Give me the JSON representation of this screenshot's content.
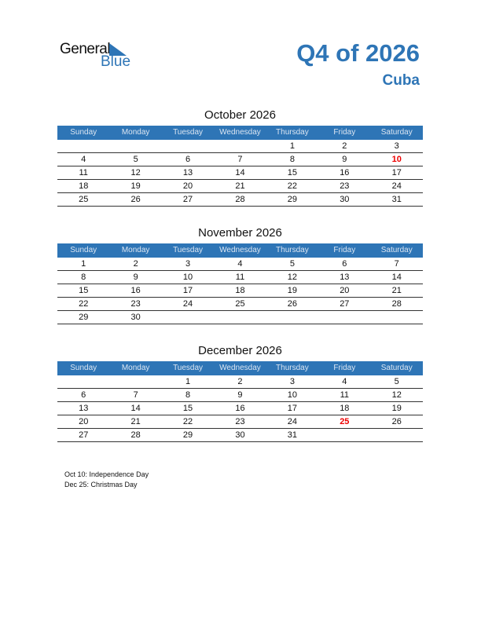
{
  "logo": {
    "general": "General",
    "blue": "Blue"
  },
  "title": "Q4 of 2026",
  "country": "Cuba",
  "weekdays": [
    "Sunday",
    "Monday",
    "Tuesday",
    "Wednesday",
    "Thursday",
    "Friday",
    "Saturday"
  ],
  "colors": {
    "accent": "#2e75b6",
    "holiday": "#e00000"
  },
  "months": [
    {
      "title": "October 2026",
      "weeks": [
        [
          "",
          "",
          "",
          "",
          "1",
          "2",
          "3"
        ],
        [
          "4",
          "5",
          "6",
          "7",
          "8",
          "9",
          "10"
        ],
        [
          "11",
          "12",
          "13",
          "14",
          "15",
          "16",
          "17"
        ],
        [
          "18",
          "19",
          "20",
          "21",
          "22",
          "23",
          "24"
        ],
        [
          "25",
          "26",
          "27",
          "28",
          "29",
          "30",
          "31"
        ]
      ],
      "holidays": [
        "10"
      ]
    },
    {
      "title": "November 2026",
      "weeks": [
        [
          "1",
          "2",
          "3",
          "4",
          "5",
          "6",
          "7"
        ],
        [
          "8",
          "9",
          "10",
          "11",
          "12",
          "13",
          "14"
        ],
        [
          "15",
          "16",
          "17",
          "18",
          "19",
          "20",
          "21"
        ],
        [
          "22",
          "23",
          "24",
          "25",
          "26",
          "27",
          "28"
        ],
        [
          "29",
          "30",
          "",
          "",
          "",
          "",
          ""
        ]
      ],
      "holidays": []
    },
    {
      "title": "December 2026",
      "weeks": [
        [
          "",
          "",
          "1",
          "2",
          "3",
          "4",
          "5"
        ],
        [
          "6",
          "7",
          "8",
          "9",
          "10",
          "11",
          "12"
        ],
        [
          "13",
          "14",
          "15",
          "16",
          "17",
          "18",
          "19"
        ],
        [
          "20",
          "21",
          "22",
          "23",
          "24",
          "25",
          "26"
        ],
        [
          "27",
          "28",
          "29",
          "30",
          "31",
          "",
          ""
        ]
      ],
      "holidays": [
        "25"
      ]
    }
  ],
  "holiday_notes": [
    "Oct 10: Independence Day",
    "Dec 25: Christmas Day"
  ]
}
